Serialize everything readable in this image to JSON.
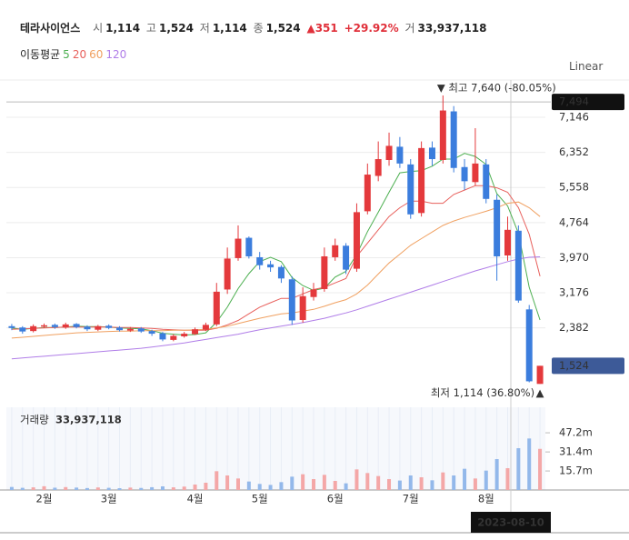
{
  "header": {
    "name": "테라사이언스",
    "open_label": "시",
    "open": "1,114",
    "high_label": "고",
    "high": "1,524",
    "low_label": "저",
    "low": "1,114",
    "close_label": "종",
    "close": "1,524",
    "change_arrow": "▲",
    "change": "351",
    "change_pct": "+29.92%",
    "volume_label": "거",
    "volume": "33,937,118"
  },
  "chart_data": [
    {
      "type": "candlestick",
      "scale": "Linear",
      "legend_title": "이동평균",
      "up_color": "#e4393c",
      "down_color": "#3b7ddd",
      "categories": [
        null,
        null,
        null,
        "2월",
        null,
        null,
        null,
        null,
        null,
        "3월",
        null,
        null,
        null,
        null,
        null,
        null,
        null,
        "4월",
        null,
        null,
        null,
        null,
        null,
        "5월",
        null,
        null,
        null,
        null,
        null,
        null,
        "6월",
        null,
        null,
        null,
        null,
        null,
        null,
        "7월",
        null,
        null,
        null,
        null,
        null,
        null,
        "8월",
        null,
        null,
        null,
        null,
        null
      ],
      "open": [
        2420,
        2390,
        2310,
        2410,
        2450,
        2390,
        2470,
        2410,
        2340,
        2430,
        2390,
        2320,
        2370,
        2310,
        2260,
        2110,
        2190,
        2240,
        2340,
        2460,
        3250,
        3960,
        4420,
        3980,
        3820,
        3760,
        3480,
        2560,
        3080,
        3260,
        3980,
        4240,
        3720,
        5020,
        5820,
        6180,
        6480,
        6080,
        4980,
        6460,
        6180,
        7280,
        6020,
        5680,
        6080,
        5280,
        4020,
        4580,
        2800,
        1114
      ],
      "high": [
        2470,
        2420,
        2460,
        2480,
        2480,
        2500,
        2490,
        2440,
        2450,
        2460,
        2420,
        2400,
        2400,
        2340,
        2290,
        2240,
        2290,
        2390,
        2500,
        3400,
        4200,
        4700,
        4450,
        4100,
        3900,
        3800,
        3550,
        3300,
        3400,
        4200,
        4400,
        4300,
        5200,
        6100,
        6600,
        6800,
        6700,
        6200,
        6600,
        6600,
        7640,
        7400,
        6200,
        6900,
        6200,
        5400,
        4900,
        4700,
        2900,
        1524
      ],
      "low": [
        2330,
        2250,
        2280,
        2380,
        2360,
        2360,
        2370,
        2310,
        2310,
        2350,
        2300,
        2290,
        2270,
        2200,
        2080,
        2080,
        2160,
        2220,
        2310,
        2420,
        3150,
        3900,
        3950,
        3700,
        3650,
        3400,
        2450,
        2500,
        3000,
        3200,
        3900,
        3600,
        3650,
        4950,
        5700,
        6050,
        6000,
        4850,
        4900,
        6050,
        6100,
        5900,
        5500,
        5600,
        5200,
        3450,
        3900,
        2950,
        1150,
        1114
      ],
      "close": [
        2380,
        2300,
        2420,
        2440,
        2400,
        2460,
        2400,
        2350,
        2420,
        2380,
        2330,
        2360,
        2300,
        2250,
        2120,
        2200,
        2250,
        2350,
        2450,
        3200,
        3950,
        4400,
        4000,
        3800,
        3750,
        3500,
        2550,
        3100,
        3250,
        4000,
        4250,
        3700,
        5000,
        5850,
        6200,
        6500,
        6100,
        4950,
        6450,
        6200,
        7300,
        6000,
        5700,
        6100,
        5300,
        4000,
        4600,
        3000,
        1173,
        1524
      ],
      "series": [
        {
          "name": "5",
          "color": "#4caf50",
          "values": [
            2380,
            2350,
            2370,
            2390,
            2390,
            2400,
            2420,
            2410,
            2410,
            2400,
            2380,
            2370,
            2360,
            2320,
            2260,
            2240,
            2220,
            2230,
            2270,
            2510,
            2850,
            3270,
            3610,
            3880,
            3980,
            3880,
            3520,
            3340,
            3230,
            3280,
            3530,
            3660,
            4040,
            4560,
            5000,
            5450,
            5890,
            5920,
            5940,
            6040,
            6200,
            6200,
            6330,
            6260,
            6080,
            5420,
            5140,
            4520,
            3300,
            2560
          ]
        },
        {
          "name": "20",
          "color": "#e8605c",
          "values": [
            2350,
            2360,
            2370,
            2380,
            2390,
            2400,
            2400,
            2400,
            2400,
            2400,
            2390,
            2390,
            2380,
            2370,
            2350,
            2340,
            2330,
            2330,
            2330,
            2370,
            2450,
            2550,
            2700,
            2850,
            2950,
            3050,
            3050,
            3150,
            3250,
            3300,
            3400,
            3500,
            4000,
            4300,
            4600,
            4900,
            5100,
            5250,
            5250,
            5200,
            5200,
            5400,
            5500,
            5600,
            5600,
            5550,
            5450,
            5100,
            4500,
            3550
          ]
        },
        {
          "name": "60",
          "color": "#f0a060",
          "values": [
            2150,
            2170,
            2190,
            2210,
            2230,
            2250,
            2270,
            2280,
            2290,
            2300,
            2310,
            2310,
            2320,
            2320,
            2320,
            2330,
            2330,
            2340,
            2350,
            2380,
            2420,
            2480,
            2540,
            2600,
            2650,
            2700,
            2720,
            2760,
            2800,
            2870,
            2950,
            3020,
            3150,
            3350,
            3600,
            3850,
            4050,
            4250,
            4400,
            4550,
            4700,
            4800,
            4880,
            4950,
            5020,
            5100,
            5200,
            5230,
            5100,
            4900
          ]
        },
        {
          "name": "120",
          "color": "#b07de8",
          "values": [
            1680,
            1700,
            1720,
            1740,
            1760,
            1780,
            1800,
            1820,
            1840,
            1860,
            1880,
            1900,
            1920,
            1950,
            1980,
            2010,
            2040,
            2080,
            2120,
            2160,
            2200,
            2240,
            2290,
            2340,
            2380,
            2420,
            2460,
            2500,
            2550,
            2600,
            2660,
            2720,
            2790,
            2870,
            2950,
            3030,
            3110,
            3190,
            3270,
            3350,
            3430,
            3510,
            3590,
            3670,
            3740,
            3810,
            3880,
            3940,
            3980,
            3990
          ]
        }
      ],
      "ylim": [
        750,
        7990
      ],
      "yticks": [
        {
          "value": 2382,
          "label": "2,382"
        },
        {
          "value": 3176,
          "label": "3,176"
        },
        {
          "value": 3970,
          "label": "3,970"
        },
        {
          "value": 4764,
          "label": "4,764"
        },
        {
          "value": 5558,
          "label": "5,558"
        },
        {
          "value": 6352,
          "label": "6,352"
        },
        {
          "value": 7146,
          "label": "7,146"
        }
      ],
      "grid": true,
      "max_annotation": {
        "value": 7640,
        "label": "최고 7,640 (-80.05%)"
      },
      "min_annotation": {
        "value": 1114,
        "label": "최저 1,114 (36.80%)"
      },
      "last_price": {
        "value": 1524,
        "label": "1,524"
      },
      "crosshair": {
        "value": 7494,
        "label": "7,494",
        "date": "2023-08-10"
      }
    },
    {
      "type": "bar",
      "title": "거래량",
      "total": "33,937,118",
      "up_color": "#f4a7a7",
      "down_color": "#93b8ea",
      "values": [
        2.5,
        1.8,
        2.2,
        3.1,
        1.9,
        2.4,
        2.0,
        1.6,
        2.1,
        1.8,
        1.5,
        2.0,
        1.7,
        2.3,
        3.0,
        2.2,
        2.8,
        4.5,
        6.0,
        15.5,
        12.0,
        9.5,
        7.0,
        5.0,
        4.2,
        6.5,
        11.0,
        13.0,
        9.0,
        12.5,
        7.5,
        5.5,
        17.0,
        14.0,
        11.5,
        9.0,
        7.8,
        12.0,
        10.5,
        8.0,
        14.5,
        12.0,
        17.5,
        9.5,
        16.0,
        25.5,
        18.0,
        34.5,
        42.5,
        33.937118
      ],
      "ylim": [
        0,
        68.25
      ],
      "yticks": [
        {
          "value": 15.7,
          "label": "15.7m"
        },
        {
          "value": 31.4,
          "label": "31.4m"
        },
        {
          "value": 47.2,
          "label": "47.2m"
        }
      ]
    }
  ]
}
